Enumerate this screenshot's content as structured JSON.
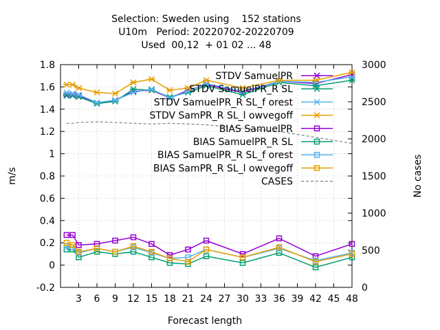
{
  "chart_data": {
    "type": "line",
    "title_lines": [
      "Selection: Sweden using    152 stations",
      "U10m   Period: 20220702-20220709",
      "Used  00,12  + 01 02 ... 48"
    ],
    "xlabel": "Forecast length",
    "ylabel": "m/s",
    "y2label": "No cases",
    "xlim": [
      0,
      48
    ],
    "ylim": [
      -0.2,
      1.8
    ],
    "y2lim": [
      0,
      3000
    ],
    "x_ticks": [
      3,
      6,
      9,
      12,
      15,
      18,
      21,
      24,
      27,
      30,
      33,
      36,
      39,
      42,
      45,
      48
    ],
    "y_ticks": [
      "-0.2",
      "0",
      "0.2",
      "0.4",
      "0.6",
      "0.8",
      "1",
      "1.2",
      "1.4",
      "1.6",
      "1.8"
    ],
    "y2_ticks": [
      "0",
      "500",
      "1000",
      "1500",
      "2000",
      "2500",
      "3000"
    ],
    "grid": true,
    "legend_position": "top-right",
    "x": [
      1,
      2,
      3,
      6,
      9,
      12,
      15,
      18,
      21,
      24,
      30,
      36,
      42,
      48
    ],
    "series": [
      {
        "name": "STDV SamuelPR",
        "color": "#9400d3",
        "marker": "x",
        "axis": "y1",
        "values": [
          1.53,
          1.53,
          1.52,
          1.45,
          1.48,
          1.56,
          1.57,
          1.5,
          1.57,
          1.62,
          1.55,
          1.65,
          1.63,
          1.71
        ]
      },
      {
        "name": "STDV SamuelPR_R SL",
        "color": "#009e73",
        "marker": "x",
        "axis": "y1",
        "values": [
          1.52,
          1.52,
          1.51,
          1.45,
          1.47,
          1.58,
          1.57,
          1.51,
          1.55,
          1.61,
          1.53,
          1.64,
          1.61,
          1.66
        ]
      },
      {
        "name": "STDV SamuelPR_R SL_f orest",
        "color": "#56b4e9",
        "marker": "x",
        "axis": "y1",
        "values": [
          1.55,
          1.54,
          1.53,
          1.46,
          1.48,
          1.55,
          1.58,
          1.5,
          1.56,
          1.63,
          1.56,
          1.65,
          1.64,
          1.69
        ]
      },
      {
        "name": "STDV SamPR_R SL_l owvegoff",
        "color": "#e69f00",
        "marker": "x",
        "axis": "y1",
        "values": [
          1.62,
          1.62,
          1.59,
          1.55,
          1.54,
          1.64,
          1.67,
          1.57,
          1.59,
          1.66,
          1.59,
          1.66,
          1.66,
          1.73
        ]
      },
      {
        "name": "BIAS SamuelPR",
        "color": "#9400d3",
        "marker": "square",
        "axis": "y1",
        "values": [
          0.27,
          0.27,
          0.18,
          0.19,
          0.22,
          0.25,
          0.19,
          0.09,
          0.14,
          0.22,
          0.1,
          0.24,
          0.08,
          0.19
        ]
      },
      {
        "name": "BIAS SamuelPR_R SL",
        "color": "#009e73",
        "marker": "square",
        "axis": "y1",
        "values": [
          0.14,
          0.14,
          0.07,
          0.12,
          0.1,
          0.12,
          0.07,
          0.02,
          0.01,
          0.08,
          0.02,
          0.11,
          -0.02,
          0.07
        ]
      },
      {
        "name": "BIAS SamuelPR_R SL_f orest",
        "color": "#56b4e9",
        "marker": "square",
        "axis": "y1",
        "values": [
          0.17,
          0.16,
          0.11,
          0.15,
          0.12,
          0.16,
          0.11,
          0.06,
          0.07,
          0.14,
          0.07,
          0.15,
          0.04,
          0.11
        ]
      },
      {
        "name": "BIAS SamPR_R SL_l owvegoff",
        "color": "#e69f00",
        "marker": "square",
        "axis": "y1",
        "values": [
          0.2,
          0.18,
          0.12,
          0.15,
          0.12,
          0.17,
          0.12,
          0.06,
          0.03,
          0.14,
          0.07,
          0.16,
          0.03,
          0.1
        ]
      },
      {
        "name": "CASES",
        "color": "#808080",
        "marker": "none",
        "dashed": true,
        "axis": "y2",
        "values": [
          2210,
          2210,
          2220,
          2230,
          2220,
          2210,
          2200,
          2210,
          2200,
          2190,
          2140,
          2100,
          2020,
          1940
        ]
      }
    ]
  }
}
